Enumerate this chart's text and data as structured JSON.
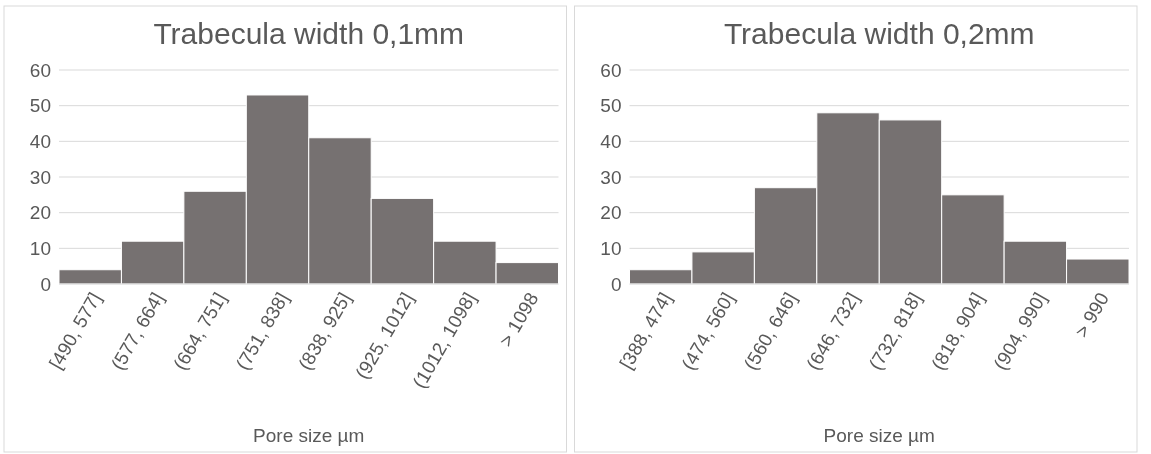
{
  "chart_data": [
    {
      "type": "bar",
      "title": "Trabecula width 0,1mm",
      "xlabel": "Pore size µm",
      "categories": [
        "[490, 577]",
        "(577, 664]",
        "(664, 751]",
        "(751, 838]",
        "(838, 925]",
        "(925, 1012]",
        "(1012, 1098]",
        "> 1098"
      ],
      "values": [
        4,
        12,
        26,
        53,
        41,
        24,
        12,
        6
      ],
      "color": "#767171",
      "ylim": [
        0,
        60
      ],
      "yticks": [
        0,
        10,
        20,
        30,
        40,
        50,
        60
      ],
      "grid": "y"
    },
    {
      "type": "bar",
      "title": "Trabecula width 0,2mm",
      "xlabel": "Pore size µm",
      "categories": [
        "[388, 474]",
        "(474, 560]",
        "(560, 646]",
        "(646, 732]",
        "(732, 818]",
        "(818, 904]",
        "(904, 990]",
        "> 990"
      ],
      "values": [
        4,
        9,
        27,
        48,
        46,
        25,
        12,
        7
      ],
      "color": "#767171",
      "ylim": [
        0,
        60
      ],
      "yticks": [
        0,
        10,
        20,
        30,
        40,
        50,
        60
      ],
      "grid": "y"
    }
  ]
}
